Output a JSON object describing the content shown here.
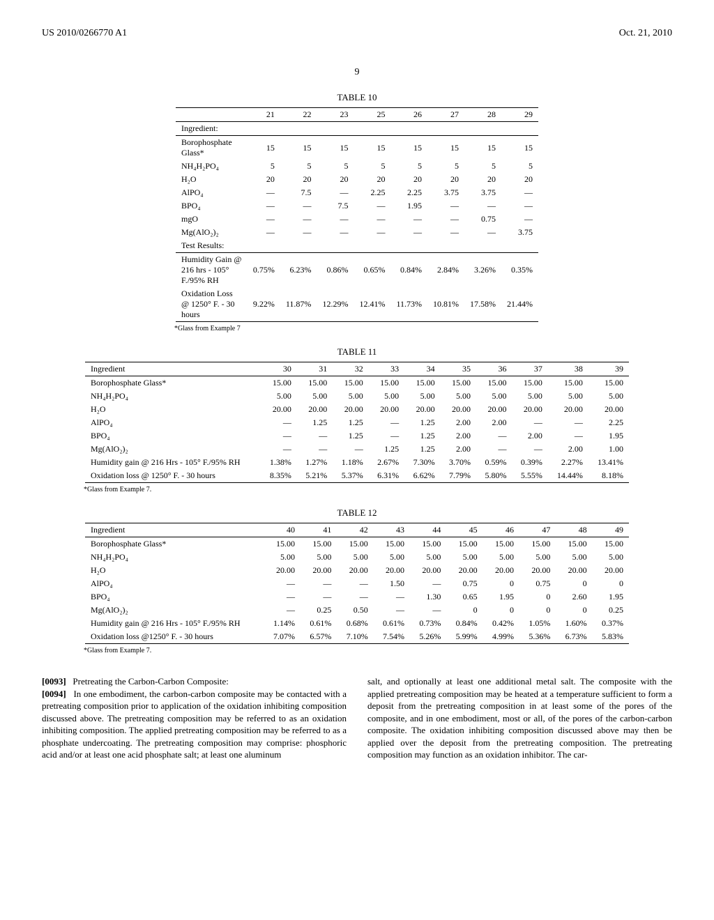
{
  "header": {
    "pub_no": "US 2010/0266770 A1",
    "date": "Oct. 21, 2010"
  },
  "page_number": "9",
  "table10": {
    "title": "TABLE 10",
    "footnote": "*Glass from Example 7",
    "cols": [
      "21",
      "22",
      "23",
      "25",
      "26",
      "27",
      "28",
      "29"
    ],
    "ingredient_label": "Ingredient:",
    "rows": [
      {
        "label": "Borophosphate Glass*",
        "v": [
          "15",
          "15",
          "15",
          "15",
          "15",
          "15",
          "15",
          "15"
        ]
      },
      {
        "label": "NH₄H₂PO₄",
        "v": [
          "5",
          "5",
          "5",
          "5",
          "5",
          "5",
          "5",
          "5"
        ]
      },
      {
        "label": "H₂O",
        "v": [
          "20",
          "20",
          "20",
          "20",
          "20",
          "20",
          "20",
          "20"
        ]
      },
      {
        "label": "AlPO₄",
        "v": [
          "—",
          "7.5",
          "—",
          "2.25",
          "2.25",
          "3.75",
          "3.75",
          "—"
        ]
      },
      {
        "label": "BPO₄",
        "v": [
          "—",
          "—",
          "7.5",
          "—",
          "1.95",
          "—",
          "—",
          "—"
        ]
      },
      {
        "label": "mgO",
        "v": [
          "—",
          "—",
          "—",
          "—",
          "—",
          "—",
          "0.75",
          "—"
        ]
      },
      {
        "label": "Mg(AlO₂)₂",
        "v": [
          "—",
          "—",
          "—",
          "—",
          "—",
          "—",
          "—",
          "3.75"
        ]
      },
      {
        "label": "Test Results:",
        "v": [
          "",
          "",
          "",
          "",
          "",
          "",
          "",
          ""
        ]
      }
    ],
    "results": [
      {
        "label": "Humidity Gain @ 216 hrs - 105° F./95% RH",
        "v": [
          "0.75%",
          "6.23%",
          "0.86%",
          "0.65%",
          "0.84%",
          "2.84%",
          "3.26%",
          "0.35%"
        ]
      },
      {
        "label": "Oxidation Loss @ 1250° F. - 30 hours",
        "v": [
          "9.22%",
          "11.87%",
          "12.29%",
          "12.41%",
          "11.73%",
          "10.81%",
          "17.58%",
          "21.44%"
        ]
      }
    ]
  },
  "table11": {
    "title": "TABLE 11",
    "footnote": "*Glass from Example 7.",
    "header_label": "Ingredient",
    "cols": [
      "30",
      "31",
      "32",
      "33",
      "34",
      "35",
      "36",
      "37",
      "38",
      "39"
    ],
    "rows": [
      {
        "label": "Borophosphate Glass*",
        "v": [
          "15.00",
          "15.00",
          "15.00",
          "15.00",
          "15.00",
          "15.00",
          "15.00",
          "15.00",
          "15.00",
          "15.00"
        ]
      },
      {
        "label": "NH₄H₂PO₄",
        "v": [
          "5.00",
          "5.00",
          "5.00",
          "5.00",
          "5.00",
          "5.00",
          "5.00",
          "5.00",
          "5.00",
          "5.00"
        ]
      },
      {
        "label": "H₂O",
        "v": [
          "20.00",
          "20.00",
          "20.00",
          "20.00",
          "20.00",
          "20.00",
          "20.00",
          "20.00",
          "20.00",
          "20.00"
        ]
      },
      {
        "label": "AlPO₄",
        "v": [
          "—",
          "1.25",
          "1.25",
          "—",
          "1.25",
          "2.00",
          "2.00",
          "—",
          "—",
          "2.25"
        ]
      },
      {
        "label": "BPO₄",
        "v": [
          "—",
          "—",
          "1.25",
          "—",
          "1.25",
          "2.00",
          "—",
          "2.00",
          "—",
          "1.95"
        ]
      },
      {
        "label": "Mg(AlO₂)₂",
        "v": [
          "—",
          "—",
          "—",
          "1.25",
          "1.25",
          "2.00",
          "—",
          "—",
          "2.00",
          "1.00"
        ]
      },
      {
        "label": "Humidity gain @ 216 Hrs - 105° F./95% RH",
        "v": [
          "1.38%",
          "1.27%",
          "1.18%",
          "2.67%",
          "7.30%",
          "3.70%",
          "0.59%",
          "0.39%",
          "2.27%",
          "13.41%"
        ]
      },
      {
        "label": "Oxidation loss @ 1250° F. - 30 hours",
        "v": [
          "8.35%",
          "5.21%",
          "5.37%",
          "6.31%",
          "6.62%",
          "7.79%",
          "5.80%",
          "5.55%",
          "14.44%",
          "8.18%"
        ]
      }
    ]
  },
  "table12": {
    "title": "TABLE 12",
    "footnote": "*Glass from Example 7.",
    "header_label": "Ingredient",
    "cols": [
      "40",
      "41",
      "42",
      "43",
      "44",
      "45",
      "46",
      "47",
      "48",
      "49"
    ],
    "rows": [
      {
        "label": "Borophosphate Glass*",
        "v": [
          "15.00",
          "15.00",
          "15.00",
          "15.00",
          "15.00",
          "15.00",
          "15.00",
          "15.00",
          "15.00",
          "15.00"
        ]
      },
      {
        "label": "NH₄H₂PO₄",
        "v": [
          "5.00",
          "5.00",
          "5.00",
          "5.00",
          "5.00",
          "5.00",
          "5.00",
          "5.00",
          "5.00",
          "5.00"
        ]
      },
      {
        "label": "H₂O",
        "v": [
          "20.00",
          "20.00",
          "20.00",
          "20.00",
          "20.00",
          "20.00",
          "20.00",
          "20.00",
          "20.00",
          "20.00"
        ]
      },
      {
        "label": "AlPO₄",
        "v": [
          "—",
          "—",
          "—",
          "1.50",
          "—",
          "0.75",
          "0",
          "0.75",
          "0",
          "0"
        ]
      },
      {
        "label": "BPO₄",
        "v": [
          "—",
          "—",
          "—",
          "—",
          "1.30",
          "0.65",
          "1.95",
          "0",
          "2.60",
          "1.95"
        ]
      },
      {
        "label": "Mg(AlO₂)₂",
        "v": [
          "—",
          "0.25",
          "0.50",
          "—",
          "—",
          "0",
          "0",
          "0",
          "0",
          "0.25"
        ]
      },
      {
        "label": "Humidity gain @ 216 Hrs - 105° F./95% RH",
        "v": [
          "1.14%",
          "0.61%",
          "0.68%",
          "0.61%",
          "0.73%",
          "0.84%",
          "0.42%",
          "1.05%",
          "1.60%",
          "0.37%"
        ]
      },
      {
        "label": "Oxidation loss @1250° F. - 30 hours",
        "v": [
          "7.07%",
          "6.57%",
          "7.10%",
          "7.54%",
          "5.26%",
          "5.99%",
          "4.99%",
          "5.36%",
          "6.73%",
          "5.83%"
        ]
      }
    ]
  },
  "body": {
    "para93_num": "[0093]",
    "para93": "Pretreating the Carbon-Carbon Composite:",
    "para94_num": "[0094]",
    "para94_left": "In one embodiment, the carbon-carbon composite may be contacted with a pretreating composition prior to application of the oxidation inhibiting composition discussed above. The pretreating composition may be referred to as an oxidation inhibiting composition. The applied pretreating composition may be referred to as a phosphate undercoating. The pretreating composition may comprise: phosphoric acid and/or at least one acid phosphate salt; at least one aluminum",
    "para94_right": "salt, and optionally at least one additional metal salt. The composite with the applied pretreating composition may be heated at a temperature sufficient to form a deposit from the pretreating composition in at least some of the pores of the composite, and in one embodiment, most or all, of the pores of the carbon-carbon composite. The oxidation inhibiting composition discussed above may then be applied over the deposit from the pretreating composition. The pretreating composition may function as an oxidation inhibitor. The car-"
  }
}
